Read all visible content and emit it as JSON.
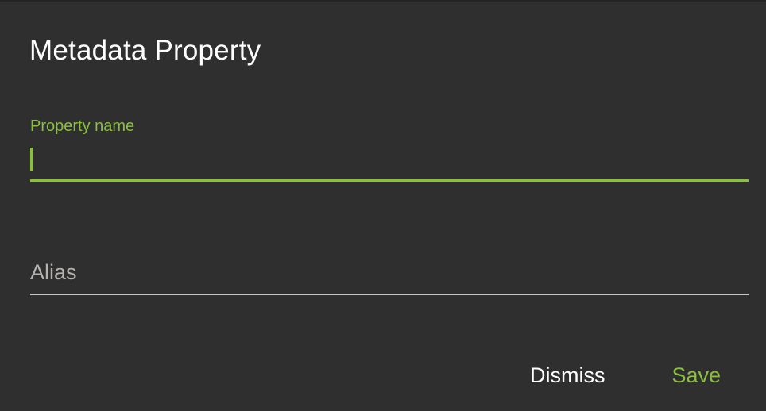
{
  "dialog": {
    "title": "Metadata Property",
    "fields": [
      {
        "id": "property-name",
        "label": "Property name",
        "value": "",
        "placeholder": "",
        "state": "focused"
      },
      {
        "id": "alias",
        "label": "",
        "value": "",
        "placeholder": "Alias",
        "state": "blurred"
      }
    ],
    "buttons": {
      "dismiss": "Dismiss",
      "save": "Save"
    }
  },
  "colors": {
    "background": "#2f2f2f",
    "accent_green": "#8cbe3f",
    "title_text": "#fdfdfd",
    "placeholder_gray": "#b5b2b0",
    "underline_gray": "#c9c6c4"
  }
}
